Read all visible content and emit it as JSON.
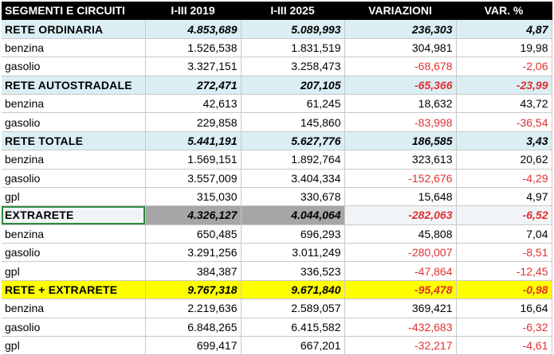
{
  "headers": [
    "SEGMENTI E CIRCUITI",
    "I-III 2019",
    "I-III 2025",
    "VARIAZIONI",
    "VAR. %"
  ],
  "rows": [
    {
      "kind": "section",
      "label": "RETE ORDINARIA",
      "v2019": "4.853,689",
      "v2025": "5.089,993",
      "var": "236,303",
      "pct": "4,87",
      "var_neg": false,
      "pct_neg": false
    },
    {
      "kind": "data",
      "label": "benzina",
      "v2019": "1.526,538",
      "v2025": "1.831,519",
      "var": "304,981",
      "pct": "19,98",
      "var_neg": false,
      "pct_neg": false
    },
    {
      "kind": "data",
      "label": "gasolio",
      "v2019": "3.327,151",
      "v2025": "3.258,473",
      "var": "-68,678",
      "pct": "-2,06",
      "var_neg": true,
      "pct_neg": true
    },
    {
      "kind": "section",
      "label": "RETE AUTOSTRADALE",
      "v2019": "272,471",
      "v2025": "207,105",
      "var": "-65,366",
      "pct": "-23,99",
      "var_neg": true,
      "pct_neg": true
    },
    {
      "kind": "data",
      "label": "benzina",
      "v2019": "42,613",
      "v2025": "61,245",
      "var": "18,632",
      "pct": "43,72",
      "var_neg": false,
      "pct_neg": false
    },
    {
      "kind": "data",
      "label": "gasolio",
      "v2019": "229,858",
      "v2025": "145,860",
      "var": "-83,998",
      "pct": "-36,54",
      "var_neg": true,
      "pct_neg": true
    },
    {
      "kind": "section",
      "label": "RETE TOTALE",
      "v2019": "5.441,191",
      "v2025": "5.627,776",
      "var": "186,585",
      "pct": "3,43",
      "var_neg": false,
      "pct_neg": false
    },
    {
      "kind": "data",
      "label": "benzina",
      "v2019": "1.569,151",
      "v2025": "1.892,764",
      "var": "323,613",
      "pct": "20,62",
      "var_neg": false,
      "pct_neg": false
    },
    {
      "kind": "data",
      "label": "gasolio",
      "v2019": "3.557,009",
      "v2025": "3.404,334",
      "var": "-152,676",
      "pct": "-4,29",
      "var_neg": true,
      "pct_neg": true
    },
    {
      "kind": "data",
      "label": "gpl",
      "v2019": "315,030",
      "v2025": "330,678",
      "var": "15,648",
      "pct": "4,97",
      "var_neg": false,
      "pct_neg": false
    },
    {
      "kind": "section-extra",
      "label": "EXTRARETE",
      "v2019": "4.326,127",
      "v2025": "4.044,064",
      "var": "-282,063",
      "pct": "-6,52",
      "var_neg": true,
      "pct_neg": true
    },
    {
      "kind": "data",
      "label": "benzina",
      "v2019": "650,485",
      "v2025": "696,293",
      "var": "45,808",
      "pct": "7,04",
      "var_neg": false,
      "pct_neg": false
    },
    {
      "kind": "data",
      "label": "gasolio",
      "v2019": "3.291,256",
      "v2025": "3.011,249",
      "var": "-280,007",
      "pct": "-8,51",
      "var_neg": true,
      "pct_neg": true
    },
    {
      "kind": "data",
      "label": "gpl",
      "v2019": "384,387",
      "v2025": "336,523",
      "var": "-47,864",
      "pct": "-12,45",
      "var_neg": true,
      "pct_neg": true
    },
    {
      "kind": "section-total",
      "label": "RETE + EXTRARETE",
      "v2019": "9.767,318",
      "v2025": "9.671,840",
      "var": "-95,478",
      "pct": "-0,98",
      "var_neg": true,
      "pct_neg": true
    },
    {
      "kind": "data",
      "label": "benzina",
      "v2019": "2.219,636",
      "v2025": "2.589,057",
      "var": "369,421",
      "pct": "16,64",
      "var_neg": false,
      "pct_neg": false
    },
    {
      "kind": "data",
      "label": "gasolio",
      "v2019": "6.848,265",
      "v2025": "6.415,582",
      "var": "-432,683",
      "pct": "-6,32",
      "var_neg": true,
      "pct_neg": true
    },
    {
      "kind": "data",
      "label": "gpl",
      "v2019": "699,417",
      "v2025": "667,201",
      "var": "-32,217",
      "pct": "-4,61",
      "var_neg": true,
      "pct_neg": true
    }
  ],
  "colors": {
    "header_bg": "#000000",
    "section_bg": "#dbeef4",
    "total_bg": "#ffff00",
    "extra_shade": "#a6a6a6",
    "negative": "#e03030"
  }
}
